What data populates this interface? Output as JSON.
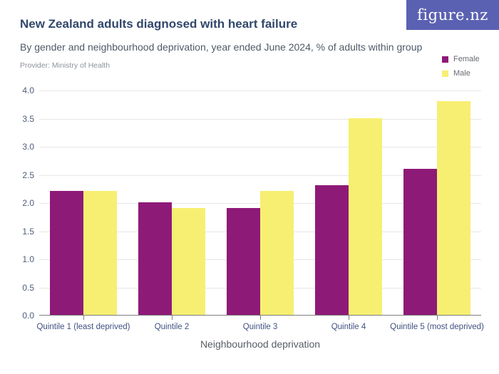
{
  "header": {
    "logo_text": "figure.nz",
    "provider": "Provider: Ministry of Health"
  },
  "colors": {
    "logo_bg": "#5b61b2",
    "title_text": "#31476b",
    "female": "#8e1a78",
    "male": "#f7ef72",
    "gridline": "#e7e7e7",
    "axis_line": "#808080"
  },
  "chart_data": {
    "type": "bar",
    "title": "New Zealand adults diagnosed with heart failure",
    "subtitle": "By gender and neighbourhood deprivation, year ended June 2024, % of adults within group",
    "categories": [
      "Quintile 1 (least deprived)",
      "Quintile 2",
      "Quintile 3",
      "Quintile 4",
      "Quintile 5 (most deprived)"
    ],
    "series": [
      {
        "name": "Female",
        "color": "#8e1a78",
        "values": [
          2.2,
          2.0,
          1.9,
          2.3,
          2.6
        ]
      },
      {
        "name": "Male",
        "color": "#f7ef72",
        "values": [
          2.2,
          1.9,
          2.2,
          3.5,
          3.8
        ]
      }
    ],
    "xlabel": "Neighbourhood deprivation",
    "ylabel": "",
    "ylim": [
      0,
      4.0
    ],
    "ystep": 0.5,
    "ytick_labels": [
      "0.0",
      "0.5",
      "1.0",
      "1.5",
      "2.0",
      "2.5",
      "3.0",
      "3.5",
      "4.0"
    ],
    "grid": true,
    "legend_position": "top-right"
  }
}
